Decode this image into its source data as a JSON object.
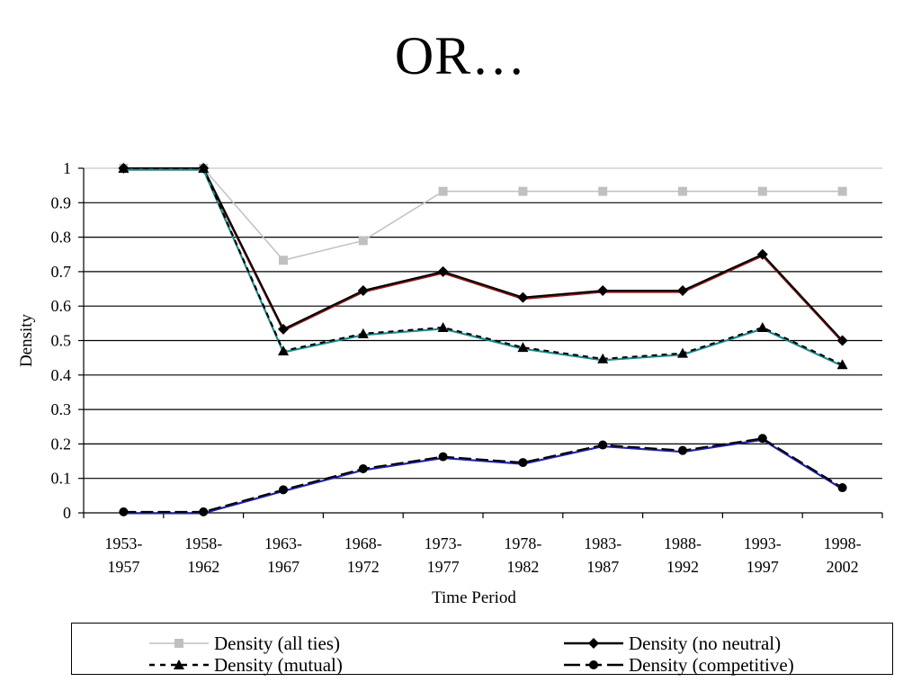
{
  "slide": {
    "title": "OR…"
  },
  "chart_data": {
    "type": "line",
    "xlabel": "Time Period",
    "ylabel": "Density",
    "ylim": [
      0,
      1
    ],
    "yticks": [
      "0",
      "0.1",
      "0.2",
      "0.3",
      "0.4",
      "0.5",
      "0.6",
      "0.7",
      "0.8",
      "0.9",
      "1"
    ],
    "grid": true,
    "legend_position": "bottom",
    "categories": [
      [
        "1953-",
        "1957"
      ],
      [
        "1958-",
        "1962"
      ],
      [
        "1963-",
        "1967"
      ],
      [
        "1968-",
        "1972"
      ],
      [
        "1973-",
        "1977"
      ],
      [
        "1978-",
        "1982"
      ],
      [
        "1983-",
        "1987"
      ],
      [
        "1988-",
        "1992"
      ],
      [
        "1993-",
        "1997"
      ],
      [
        "1998-",
        "2002"
      ]
    ],
    "series": [
      {
        "name": "Density (all ties)",
        "color": "#c0c0c0",
        "marker": "square",
        "dash": "solid",
        "values": [
          1,
          1,
          0.733,
          0.79,
          0.933,
          0.933,
          0.933,
          0.933,
          0.933,
          0.933
        ]
      },
      {
        "name": "Density (no neutral)",
        "color": "#000000",
        "shadow": "#8b1a1a",
        "marker": "diamond",
        "dash": "solid",
        "values": [
          1,
          1,
          0.533,
          0.645,
          0.7,
          0.625,
          0.645,
          0.645,
          0.75,
          0.5
        ]
      },
      {
        "name": "Density (mutual)",
        "color": "#000000",
        "shadow": "#1f8a8a",
        "marker": "triangle",
        "dash": "dashed",
        "values": [
          1,
          1,
          0.47,
          0.52,
          0.538,
          0.48,
          0.447,
          0.463,
          0.538,
          0.43
        ]
      },
      {
        "name": "Density (competitive)",
        "color": "#000000",
        "shadow": "#2222aa",
        "marker": "circle",
        "dash": "longdash",
        "values": [
          0.003,
          0.003,
          0.067,
          0.128,
          0.163,
          0.146,
          0.197,
          0.181,
          0.216,
          0.073
        ]
      }
    ]
  }
}
